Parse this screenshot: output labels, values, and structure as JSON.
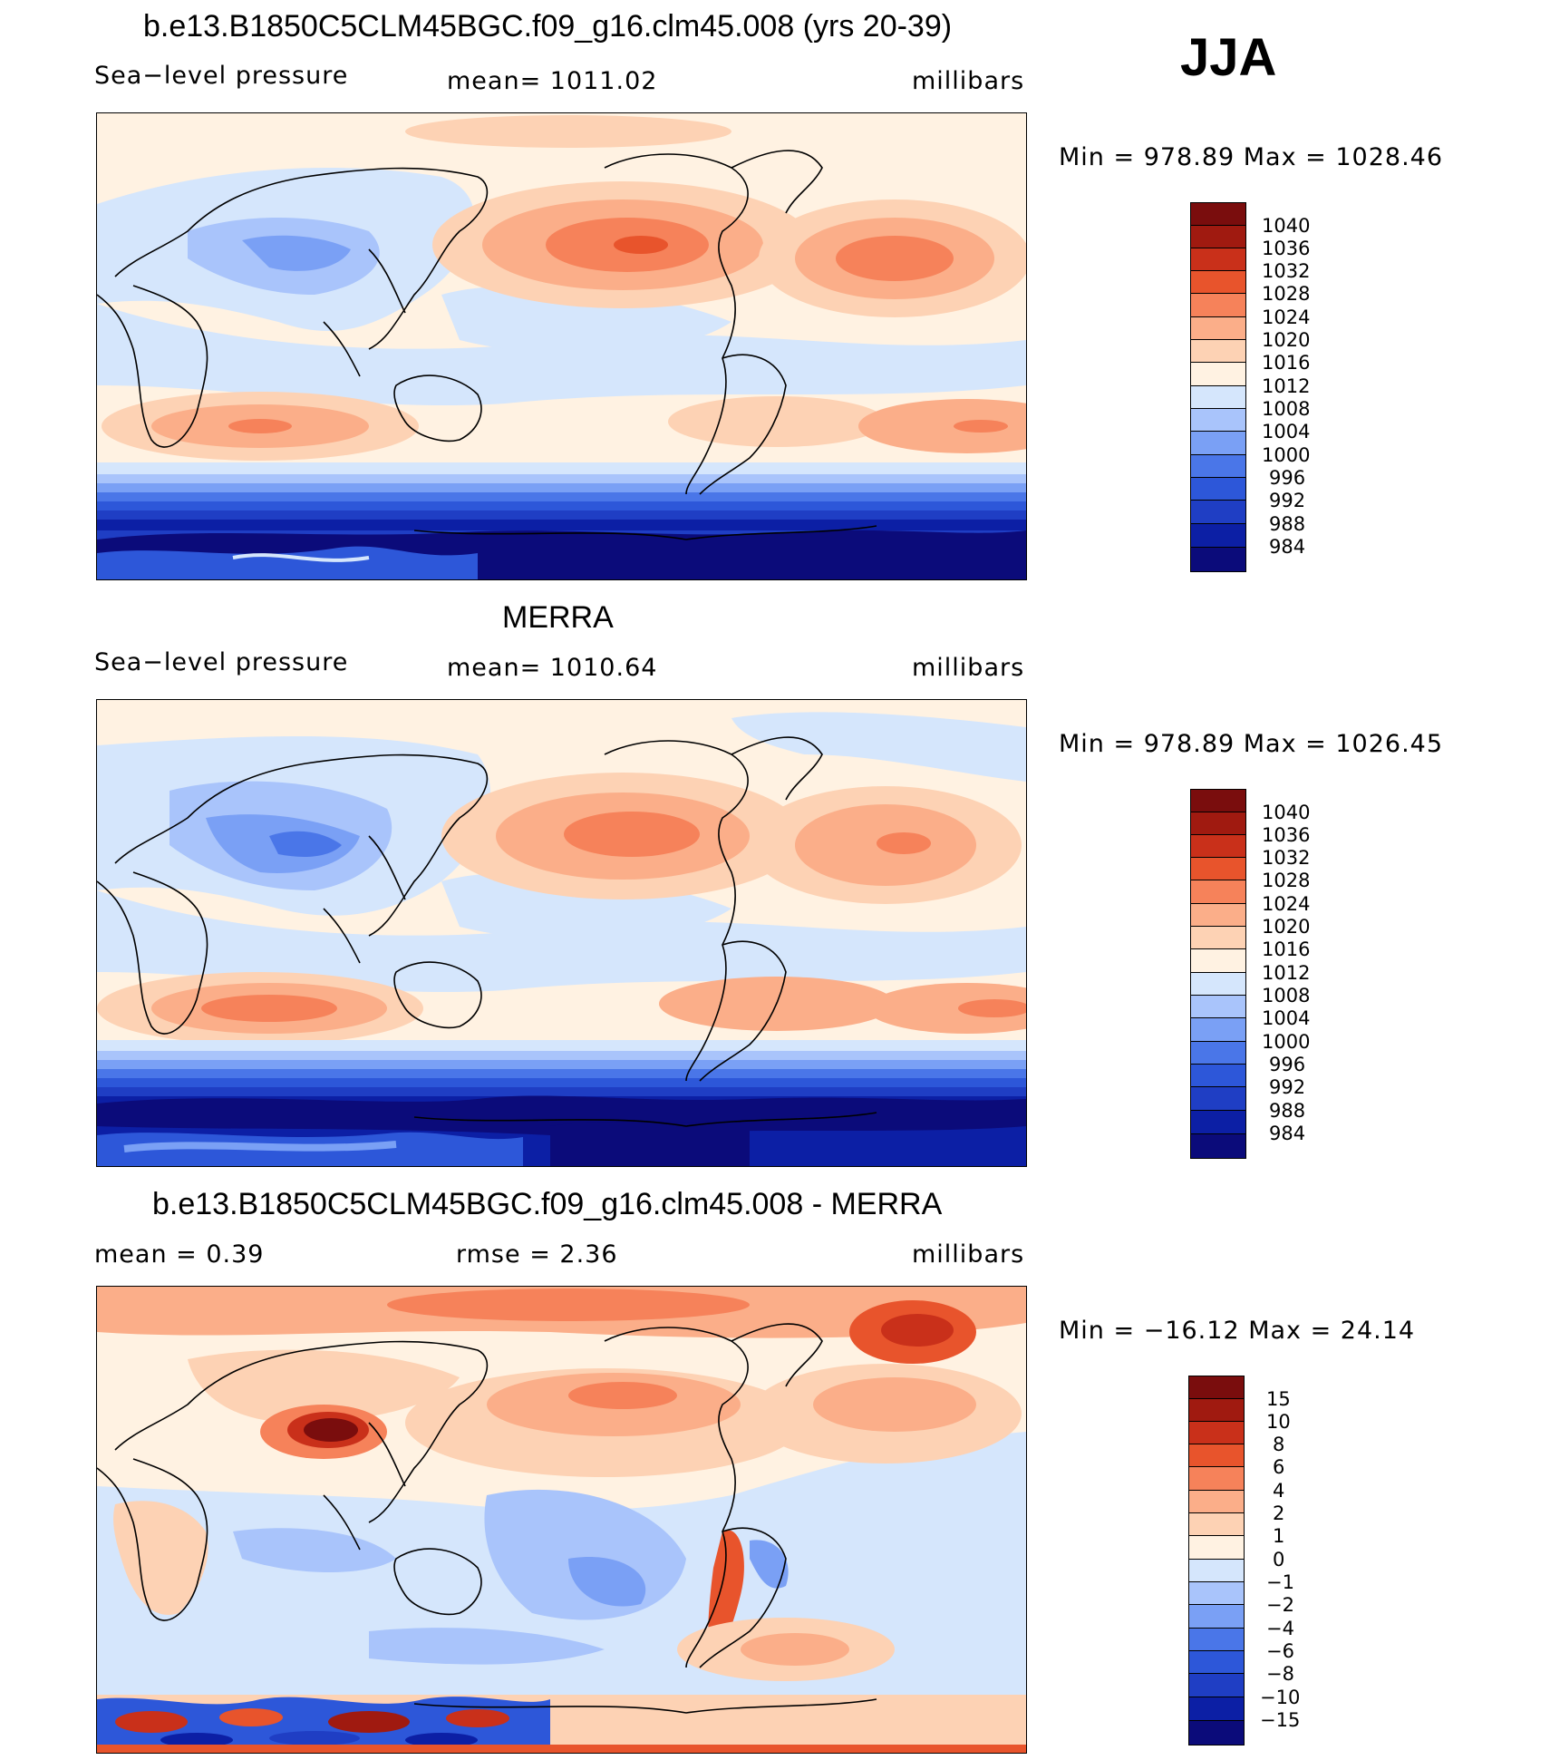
{
  "season": "JJA",
  "colors": {
    "slp_levels": [
      "#0b0b7a",
      "#0c1fa5",
      "#1f3ec4",
      "#2d57d9",
      "#4a76e8",
      "#7aa0f5",
      "#a9c4fb",
      "#d5e6fc",
      "#fff2e2",
      "#fdd2b4",
      "#fbae89",
      "#f6825a",
      "#e8542c",
      "#c9301a",
      "#a01a10",
      "#7a0d0d"
    ],
    "diff_levels": [
      "#0b0b7a",
      "#0c1fa5",
      "#1f3ec4",
      "#2d57d9",
      "#4a76e8",
      "#7aa0f5",
      "#a9c4fb",
      "#d5e6fc",
      "#fff2e2",
      "#fdd2b4",
      "#fbae89",
      "#f6825a",
      "#e8542c",
      "#c9301a",
      "#a01a10",
      "#7a0d0d"
    ]
  },
  "panels": [
    {
      "title": "b.e13.B1850C5CLM45BGC.f09_g16.clm45.008 (yrs 20-39)",
      "left_label": "Sea−level pressure",
      "center_label": "mean=  1011.02",
      "right_label": "millibars",
      "minmax": "Min  =  978.89  Max  =  1028.46",
      "colorbar_labels": [
        "1040",
        "1036",
        "1032",
        "1028",
        "1024",
        "1020",
        "1016",
        "1012",
        "1008",
        "1004",
        "1000",
        "996",
        "992",
        "988",
        "984"
      ]
    },
    {
      "title": "MERRA",
      "left_label": "Sea−level pressure",
      "center_label": "mean=  1010.64",
      "right_label": "millibars",
      "minmax": "Min  =  978.89  Max  =  1026.45",
      "colorbar_labels": [
        "1040",
        "1036",
        "1032",
        "1028",
        "1024",
        "1020",
        "1016",
        "1012",
        "1008",
        "1004",
        "1000",
        "996",
        "992",
        "988",
        "984"
      ]
    },
    {
      "title": "b.e13.B1850C5CLM45BGC.f09_g16.clm45.008 - MERRA",
      "left_label": "mean  =      0.39",
      "center_label": "rmse  =      2.36",
      "right_label": "millibars",
      "minmax": "Min  =  −16.12  Max  =    24.14",
      "colorbar_labels": [
        "15",
        "10",
        "8",
        "6",
        "4",
        "2",
        "1",
        "0",
        "−1",
        "−2",
        "−4",
        "−6",
        "−8",
        "−10",
        "−15"
      ]
    }
  ],
  "chart_data": [
    {
      "type": "heatmap",
      "title": "b.e13.B1850C5CLM45BGC.f09_g16.clm45.008 (yrs 20-39)",
      "variable": "Sea-level pressure",
      "units": "millibars",
      "mean": 1011.02,
      "min": 978.89,
      "max": 1028.46,
      "contour_levels": [
        984,
        988,
        992,
        996,
        1000,
        1004,
        1008,
        1012,
        1016,
        1020,
        1024,
        1028,
        1032,
        1036,
        1040
      ]
    },
    {
      "type": "heatmap",
      "title": "MERRA",
      "variable": "Sea-level pressure",
      "units": "millibars",
      "mean": 1010.64,
      "min": 978.89,
      "max": 1026.45,
      "contour_levels": [
        984,
        988,
        992,
        996,
        1000,
        1004,
        1008,
        1012,
        1016,
        1020,
        1024,
        1028,
        1032,
        1036,
        1040
      ]
    },
    {
      "type": "heatmap",
      "title": "b.e13.B1850C5CLM45BGC.f09_g16.clm45.008 - MERRA",
      "units": "millibars",
      "mean": 0.39,
      "rmse": 2.36,
      "min": -16.12,
      "max": 24.14,
      "contour_levels": [
        -15,
        -10,
        -8,
        -6,
        -4,
        -2,
        -1,
        0,
        1,
        2,
        4,
        6,
        8,
        10,
        15
      ]
    }
  ]
}
